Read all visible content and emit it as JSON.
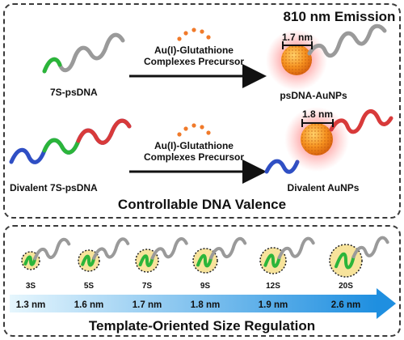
{
  "title": "810 nm Emission",
  "row1": {
    "dna_label": "7S-psDNA",
    "arrow_label_line1": "Au(I)-Glutathione",
    "arrow_label_line2": "Complexes Precursor",
    "size_label": "1.7 nm",
    "product_label": "psDNA-AuNPs"
  },
  "row2": {
    "dna_label": "Divalent 7S-psDNA",
    "arrow_label_line1": "Au(I)-Glutathione",
    "arrow_label_line2": "Complexes Precursor",
    "size_label": "1.8 nm",
    "product_label": "Divalent AuNPs"
  },
  "top_caption": "Controllable DNA Valence",
  "bottom_caption": "Template-Oriented Size Regulation",
  "templates": [
    {
      "name": "3S",
      "size": "1.3 nm"
    },
    {
      "name": "5S",
      "size": "1.6 nm"
    },
    {
      "name": "7S",
      "size": "1.7 nm"
    },
    {
      "name": "9S",
      "size": "1.8 nm"
    },
    {
      "name": "12S",
      "size": "1.9 nm"
    },
    {
      "name": "20S",
      "size": "2.6 nm"
    }
  ],
  "colors": {
    "dna_gray": "#9a9a9a",
    "dna_green": "#2bb53a",
    "dna_red": "#d83a3a",
    "dna_blue": "#2f4fc4",
    "gold": "#f28a1f",
    "glow": "#ff3b3b",
    "precursor_dots": "#f07a2a",
    "cluster_fill": "#f7e39b",
    "size_bar_start": "#e6f6fd",
    "size_bar_end": "#1f8fe0"
  }
}
